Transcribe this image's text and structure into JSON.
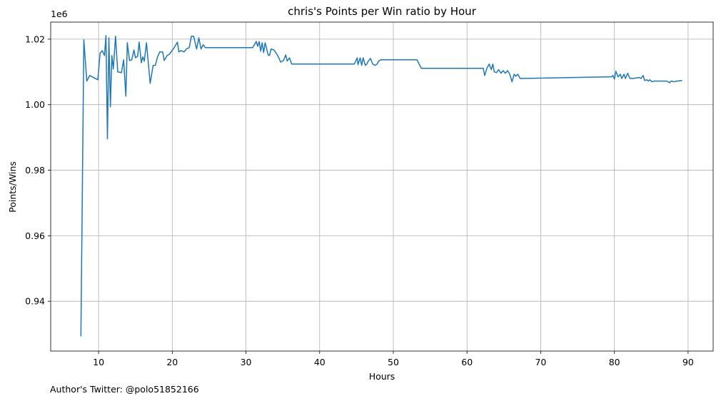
{
  "chart_data": {
    "type": "line",
    "title": "chris's Points per Win ratio by Hour",
    "x_label": "Hours",
    "y_label": "Points/Wins",
    "y_offset_label": "1e6",
    "footnote": "Author's Twitter: @polo51852166",
    "grid": true,
    "xlim": [
      3.5,
      93.4
    ],
    "ylim": [
      924800,
      1025200
    ],
    "xticks": [
      10,
      20,
      30,
      40,
      50,
      60,
      70,
      80,
      90
    ],
    "yticks": [
      {
        "value": 940000,
        "label": "0.94"
      },
      {
        "value": 960000,
        "label": "0.96"
      },
      {
        "value": 980000,
        "label": "0.98"
      },
      {
        "value": 1000000,
        "label": "1.00"
      },
      {
        "value": 1020000,
        "label": "1.02"
      }
    ],
    "x": [
      7.6,
      8.0,
      8.4,
      8.8,
      9.9,
      10.2,
      10.5,
      10.8,
      11.0,
      11.2,
      11.4,
      11.6,
      11.8,
      12.0,
      12.3,
      12.6,
      13.1,
      13.4,
      13.7,
      13.9,
      14.2,
      14.5,
      14.8,
      15.0,
      15.3,
      15.5,
      15.8,
      16.0,
      16.2,
      16.5,
      17.0,
      17.4,
      17.7,
      18.0,
      18.3,
      18.7,
      18.9,
      19.3,
      19.6,
      19.9,
      20.2,
      20.7,
      20.9,
      21.2,
      21.6,
      21.9,
      22.3,
      22.6,
      22.9,
      23.3,
      23.6,
      23.9,
      24.2,
      24.5,
      30.9,
      31.2,
      31.4,
      31.6,
      31.8,
      32.0,
      32.2,
      32.4,
      32.6,
      32.8,
      33.0,
      33.2,
      33.4,
      33.8,
      34.2,
      34.5,
      34.7,
      35.1,
      35.4,
      35.6,
      35.9,
      36.2,
      37.1,
      44.7,
      45.1,
      45.2,
      45.5,
      45.7,
      45.9,
      46.2,
      46.4,
      46.6,
      46.9,
      47.2,
      47.5,
      47.8,
      48.0,
      48.3,
      48.6,
      53.2,
      53.8,
      62.2,
      62.4,
      62.7,
      63.0,
      63.3,
      63.5,
      63.7,
      64.0,
      64.3,
      64.6,
      64.9,
      65.2,
      65.5,
      65.8,
      66.1,
      66.4,
      66.6,
      66.9,
      67.2,
      79.6,
      79.8,
      80.0,
      80.2,
      80.5,
      80.8,
      81.0,
      81.3,
      81.5,
      81.8,
      82.1,
      82.5,
      83.3,
      83.6,
      83.9,
      84.1,
      84.4,
      84.6,
      84.8,
      85.1,
      85.4,
      87.1,
      87.5,
      87.7,
      88.1,
      88.5,
      89.2
    ],
    "series": [
      {
        "color": "#1f77b4",
        "values": [
          929300,
          1019800,
          1007200,
          1008900,
          1007600,
          1015700,
          1016500,
          1015000,
          1021100,
          989600,
          1020400,
          999300,
          1015000,
          1010900,
          1020900,
          1010000,
          1009800,
          1013700,
          1002600,
          1018900,
          1013500,
          1013700,
          1016700,
          1014300,
          1014800,
          1019100,
          1012800,
          1014600,
          1013300,
          1018900,
          1006500,
          1012000,
          1012000,
          1014600,
          1016100,
          1016100,
          1013500,
          1015000,
          1015400,
          1016300,
          1017200,
          1019100,
          1016100,
          1016500,
          1016100,
          1017000,
          1017400,
          1020900,
          1020900,
          1017000,
          1020400,
          1017000,
          1018300,
          1017400,
          1017400,
          1018500,
          1019300,
          1017800,
          1019300,
          1016300,
          1018900,
          1015900,
          1018900,
          1017200,
          1015200,
          1015000,
          1017000,
          1016700,
          1015400,
          1014100,
          1013000,
          1013500,
          1015200,
          1013300,
          1014300,
          1012400,
          1012400,
          1012400,
          1014300,
          1012200,
          1014300,
          1012000,
          1014300,
          1012000,
          1012400,
          1013300,
          1014100,
          1012400,
          1012000,
          1012400,
          1013300,
          1013700,
          1013700,
          1013700,
          1011100,
          1011100,
          1008900,
          1011100,
          1012400,
          1010700,
          1012400,
          1010000,
          1009800,
          1010700,
          1009600,
          1010400,
          1009600,
          1010400,
          1009300,
          1007000,
          1009300,
          1008700,
          1009300,
          1008000,
          1008500,
          1008900,
          1007800,
          1010200,
          1008500,
          1009300,
          1008000,
          1009300,
          1008000,
          1009600,
          1008000,
          1008000,
          1008300,
          1008000,
          1008900,
          1007400,
          1007600,
          1007200,
          1007600,
          1007000,
          1007200,
          1007200,
          1006700,
          1007200,
          1007000,
          1007200,
          1007400
        ]
      }
    ]
  }
}
